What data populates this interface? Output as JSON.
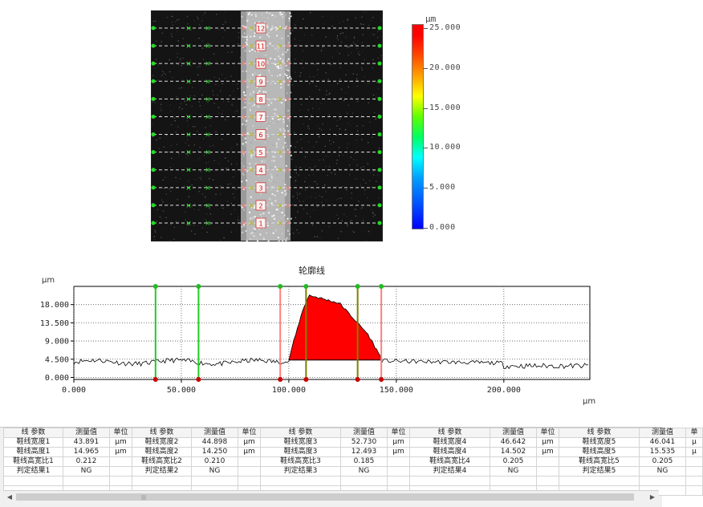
{
  "colorbar": {
    "unit": "µm",
    "labels": [
      "25.000",
      "20.000",
      "15.000",
      "10.000",
      "5.000",
      "0.000"
    ],
    "max": 25,
    "min": 0
  },
  "measurement_image": {
    "markers": [
      "12",
      "11",
      "10",
      "9",
      "8",
      "7",
      "6",
      "5",
      "4",
      "3",
      "2",
      "1"
    ]
  },
  "profile": {
    "title": "轮廓线",
    "y_unit": "µm",
    "x_unit": "µm",
    "y_ticks": [
      "18.000",
      "13.500",
      "9.000",
      "4.500",
      "0.000"
    ],
    "x_ticks": [
      "0.000",
      "50.000",
      "100.000",
      "150.000",
      "200.000"
    ],
    "y_tick_values": [
      18,
      13.5,
      9,
      4.5,
      0
    ],
    "x_tick_values": [
      0,
      50,
      100,
      150,
      200
    ],
    "ylim": [
      -0.5,
      22.5
    ],
    "xlim": [
      0,
      240
    ],
    "vertical_lines": [
      {
        "x": 38,
        "color": "#22cc22"
      },
      {
        "x": 58,
        "color": "#22cc22"
      },
      {
        "x": 96,
        "color": "#ff8080"
      },
      {
        "x": 108,
        "color": "#808000"
      },
      {
        "x": 132,
        "color": "#808000"
      },
      {
        "x": 143,
        "color": "#ff8080"
      }
    ]
  },
  "table": {
    "headers": [
      "线 参数",
      "测量值",
      "单位",
      "线 参数",
      "测量值",
      "单位",
      "线 参数",
      "测量值",
      "单位",
      "线 参数",
      "测量值",
      "单位",
      "线 参数",
      "测量值",
      "单"
    ],
    "rows": [
      [
        "鞋线宽度1",
        "43.891",
        "µm",
        "鞋线宽度2",
        "44.898",
        "µm",
        "鞋线宽度3",
        "52.730",
        "µm",
        "鞋线宽度4",
        "46.642",
        "µm",
        "鞋线宽度5",
        "46.041",
        "µ"
      ],
      [
        "鞋线高度1",
        "14.965",
        "µm",
        "鞋线高度2",
        "14.250",
        "µm",
        "鞋线高度3",
        "12.493",
        "µm",
        "鞋线高度4",
        "14.502",
        "µm",
        "鞋线高度5",
        "15.535",
        "µ"
      ],
      [
        "鞋线高宽比1",
        "0.212",
        "",
        "鞋线高宽比2",
        "0.210",
        "",
        "鞋线高宽比3",
        "0.185",
        "",
        "鞋线高宽比4",
        "0.205",
        "",
        "鞋线高宽比5",
        "0.205",
        ""
      ],
      [
        "判定结果1",
        "NG",
        "",
        "判定结果2",
        "NG",
        "",
        "判定结果3",
        "NG",
        "",
        "判定结果4",
        "NG",
        "",
        "判定结果5",
        "NG",
        ""
      ]
    ],
    "scroll_left": "◀",
    "scroll_right": "▶",
    "scroll_grip": "|||"
  },
  "colors": {
    "profile_fill": "#ff0000",
    "grid": "#555555"
  }
}
